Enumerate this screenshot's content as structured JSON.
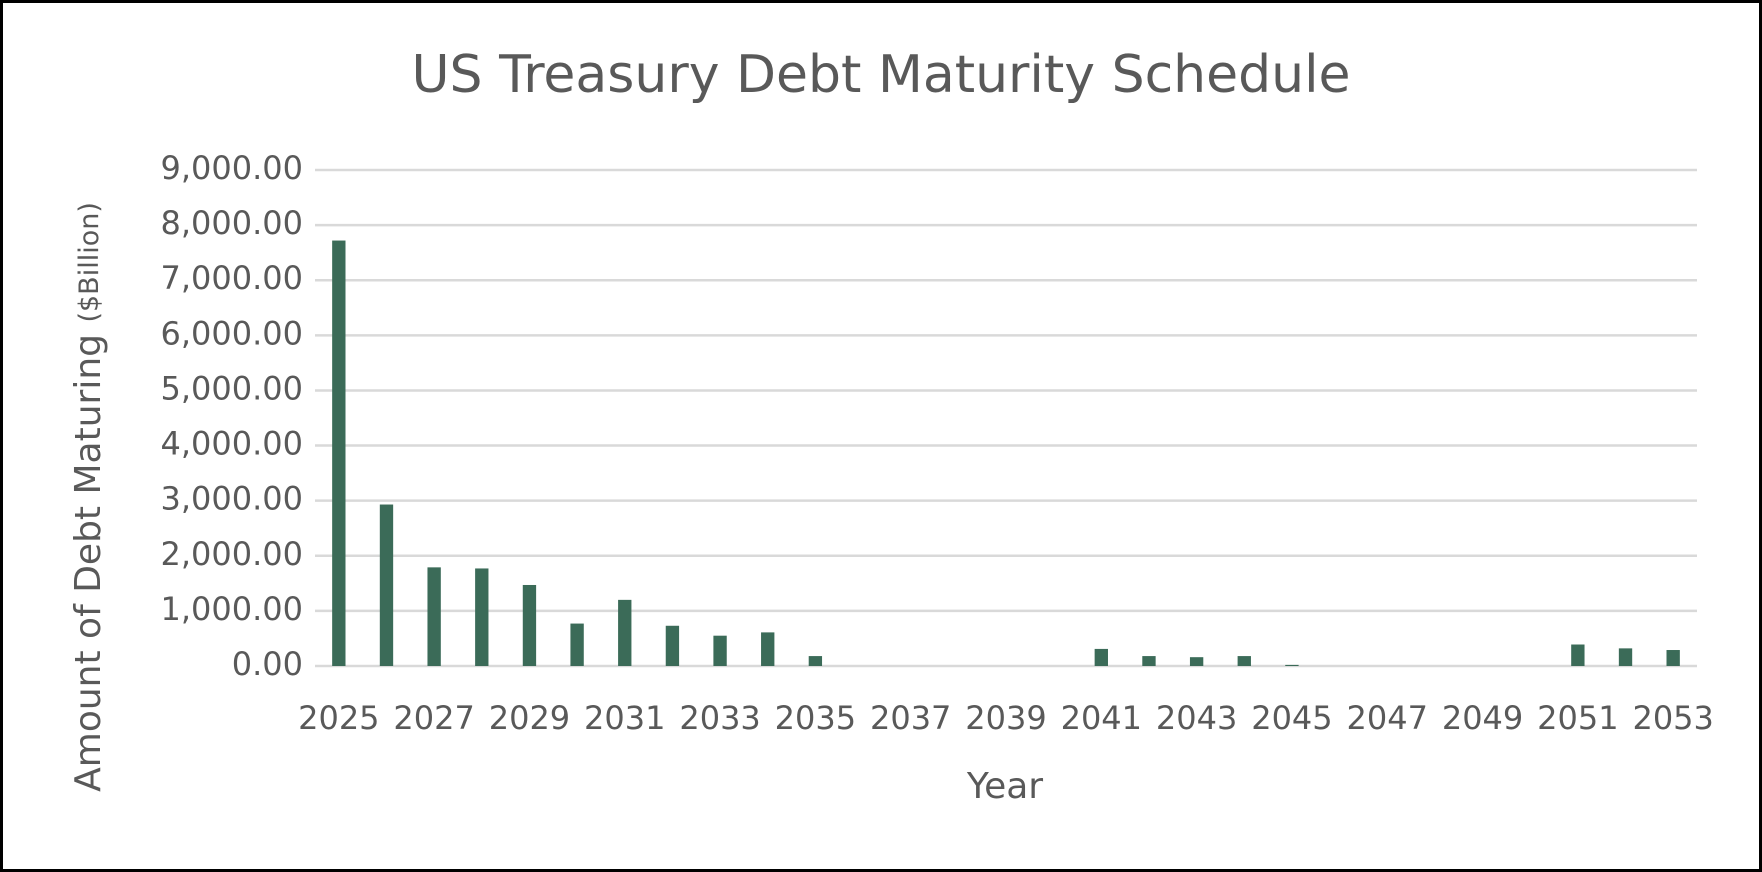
{
  "chart_data": {
    "type": "bar",
    "title": "US Treasury Debt Maturity Schedule",
    "xlabel": "Year",
    "ylabel": "Amount of Debt Maturing",
    "ylabel_unit": "($Billion)",
    "categories": [
      "2025",
      null,
      "2027",
      null,
      "2029",
      null,
      "2031",
      null,
      "2033",
      null,
      "2035",
      null,
      "2037",
      null,
      "2039",
      null,
      "2041",
      null,
      "2043",
      null,
      "2045",
      null,
      "2047",
      null,
      "2049",
      null,
      "2051",
      null,
      "2053"
    ],
    "values": [
      7720,
      2930,
      1790,
      1770,
      1470,
      770,
      1200,
      730,
      550,
      610,
      180,
      0,
      0,
      0,
      0,
      0,
      310,
      180,
      160,
      180,
      20,
      0,
      0,
      0,
      0,
      0,
      390,
      320,
      290
    ],
    "color": "#3b6b58",
    "ylim": [
      0,
      9000
    ],
    "yticks": [
      {
        "value": 0,
        "label": "0.00"
      },
      {
        "value": 1000,
        "label": "1,000.00"
      },
      {
        "value": 2000,
        "label": "2,000.00"
      },
      {
        "value": 3000,
        "label": "3,000.00"
      },
      {
        "value": 4000,
        "label": "4,000.00"
      },
      {
        "value": 5000,
        "label": "5,000.00"
      },
      {
        "value": 6000,
        "label": "6,000.00"
      },
      {
        "value": 7000,
        "label": "7,000.00"
      },
      {
        "value": 8000,
        "label": "8,000.00"
      },
      {
        "value": 9000,
        "label": "9,000.00"
      }
    ],
    "grid": true
  }
}
